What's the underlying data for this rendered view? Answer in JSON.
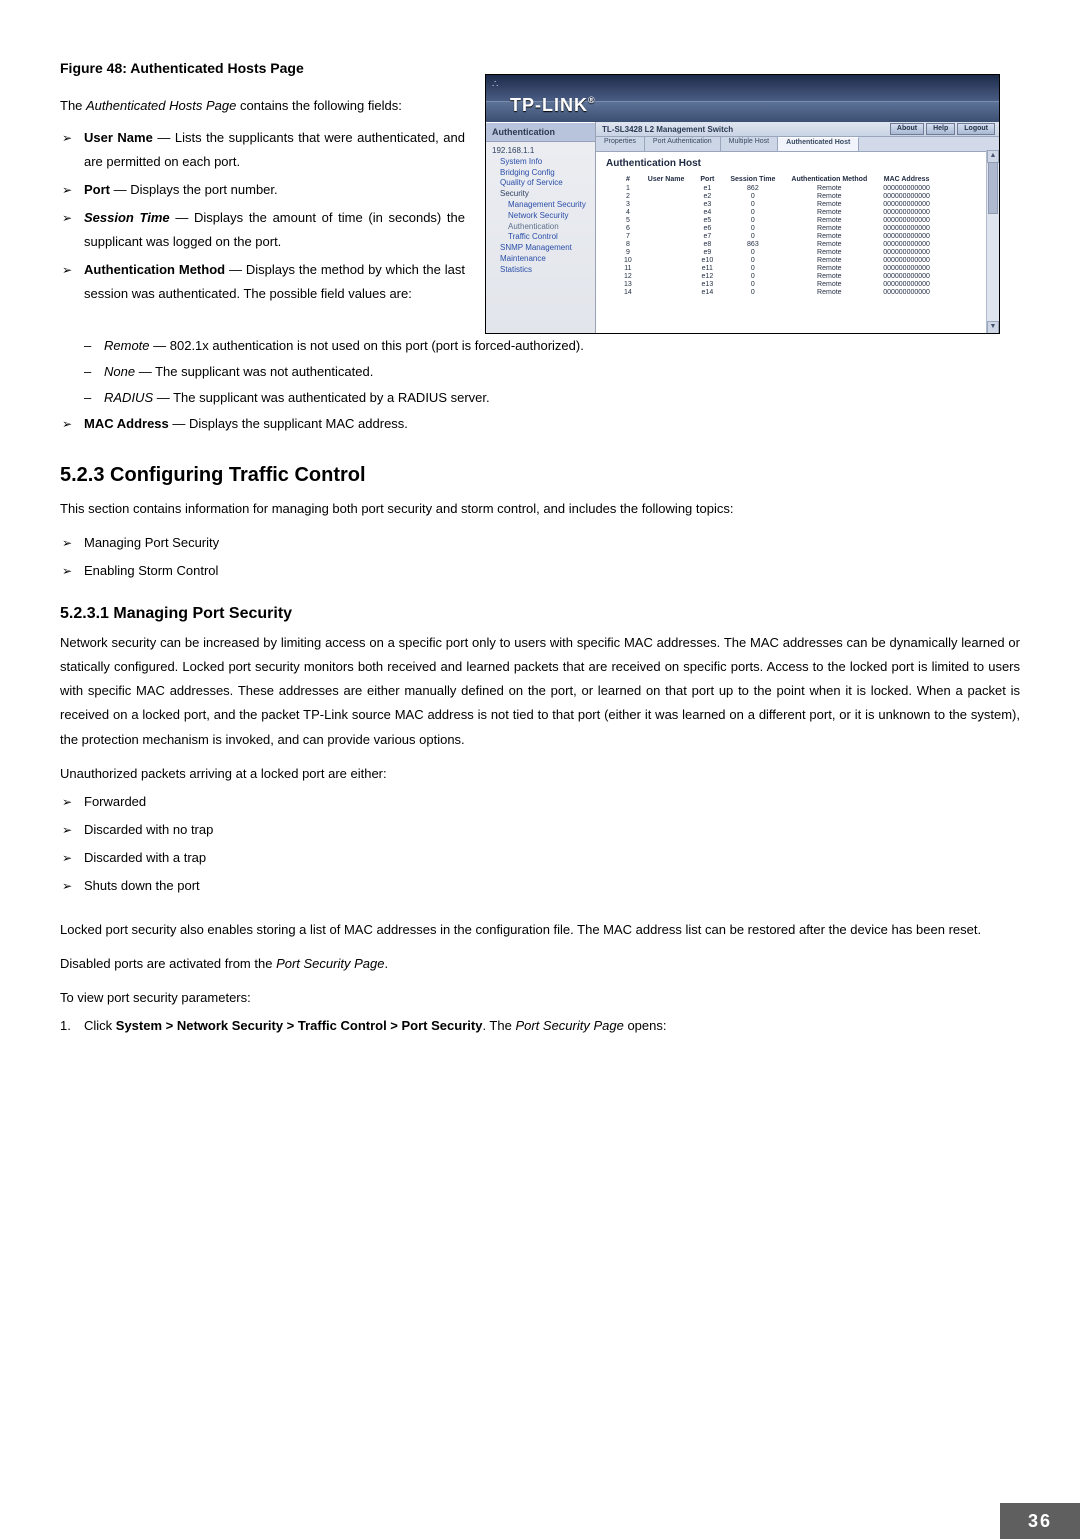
{
  "figure_caption": "Figure 48: Authenticated Hosts Page",
  "intro_pre": "The ",
  "intro_em": "Authenticated Hosts Page",
  "intro_post": " contains the following fields:",
  "bullets": [
    {
      "label": "User Name",
      "label_bold": true,
      "sep": " — ",
      "rest": "Lists the supplicants that were authenticated, and are permitted on each port."
    },
    {
      "label": "Port",
      "label_bold": true,
      "sep": " — ",
      "rest": "Displays the port number."
    },
    {
      "label": "Session Time",
      "label_bold": true,
      "label_italic": true,
      "sep": " — ",
      "rest": "Displays the amount of time (in seconds) the supplicant was logged on the port."
    },
    {
      "label": "Authentication Method",
      "label_bold": true,
      "sep": " — ",
      "rest": "Displays the method by which the last session was authenticated. The possible field values are:"
    }
  ],
  "sub_bullets": [
    {
      "em": "Remote",
      "rest": " — 802.1x authentication is not used on this port (port is forced-authorized)."
    },
    {
      "em": "None",
      "rest": " — The supplicant was not authenticated."
    },
    {
      "em": "RADIUS",
      "rest": " — The supplicant was authenticated by a RADIUS server."
    }
  ],
  "mac_bullet": {
    "label": "MAC Address",
    "sep": " — ",
    "rest": "Displays the supplicant MAC address."
  },
  "section_523": "5.2.3   Configuring Traffic Control",
  "section_523_intro": "This section contains information for managing both port security and storm control, and includes the following topics:",
  "section_523_items": [
    "Managing Port Security",
    "Enabling Storm Control"
  ],
  "section_5231": "5.2.3.1   Managing Port Security",
  "para1": "Network security can be increased by limiting access on a specific port only to users with specific MAC addresses. The MAC addresses can be dynamically learned or statically configured. Locked port security monitors both received and learned packets that are received on specific ports. Access to the locked port is limited to users with specific MAC addresses. These addresses are either manually defined on the port, or learned on that port up to the point when it is locked. When a packet is received on a locked port, and the packet TP-Link source MAC address is not tied to that port (either it was learned on a different port, or it is unknown to the system), the protection mechanism is invoked, and can provide various options.",
  "unauth_line": "Unauthorized packets arriving at a locked port are either:",
  "unauth_items": [
    "Forwarded",
    "Discarded with no trap",
    "Discarded with a trap",
    "Shuts down the port"
  ],
  "para2": "Locked port security also enables storing a list of MAC addresses in the configuration file. The MAC address list can be restored after the device has been reset.",
  "disabled_pre": "Disabled ports are activated from the ",
  "disabled_em": "Port Security Page",
  "disabled_post": ".",
  "toview": "To view port security parameters:",
  "step1_pre": "Click ",
  "step1_bold": "System > Network Security > Traffic Control > Port Security",
  "step1_mid": ". The ",
  "step1_em": "Port Security Page",
  "step1_post": " opens:",
  "page_number": "36",
  "shot": {
    "brand": "TP-LINK",
    "brand_reg": "®",
    "auth_label": "Authentication",
    "title_bar": "TL-SL3428 L2 Management Switch",
    "btn_about": "About",
    "btn_help": "Help",
    "btn_logout": "Logout",
    "tabs": [
      "Properties",
      "Port Authentication",
      "Multiple Host",
      "Authenticated Host"
    ],
    "active_tab_index": 3,
    "panel_title": "Authentication Host",
    "tree": [
      {
        "txt": "192.168.1.1",
        "cls": "row",
        "indent": 0
      },
      {
        "txt": "System Info",
        "cls": "row link i1",
        "indent": 1
      },
      {
        "txt": "Bridging Config",
        "cls": "row link i1",
        "indent": 1
      },
      {
        "txt": "Quality of Service",
        "cls": "row link i1",
        "indent": 1
      },
      {
        "txt": "Security",
        "cls": "row i1",
        "indent": 1
      },
      {
        "txt": "Management Security",
        "cls": "row link i2",
        "indent": 2
      },
      {
        "txt": "Network Security",
        "cls": "row link i2",
        "indent": 2
      },
      {
        "txt": "Authentication",
        "cls": "row sel i2",
        "indent": 2
      },
      {
        "txt": "Traffic Control",
        "cls": "row link i2",
        "indent": 2
      },
      {
        "txt": "SNMP Management",
        "cls": "row link i1",
        "indent": 1
      },
      {
        "txt": "Maintenance",
        "cls": "row link i1",
        "indent": 1
      },
      {
        "txt": "Statistics",
        "cls": "row link i1",
        "indent": 1
      }
    ],
    "columns": [
      "#",
      "User Name",
      "Port",
      "Session Time",
      "Authentication Method",
      "MAC Address"
    ],
    "rows": [
      [
        "1",
        "",
        "e1",
        "862",
        "Remote",
        "000000000000"
      ],
      [
        "2",
        "",
        "e2",
        "0",
        "Remote",
        "000000000000"
      ],
      [
        "3",
        "",
        "e3",
        "0",
        "Remote",
        "000000000000"
      ],
      [
        "4",
        "",
        "e4",
        "0",
        "Remote",
        "000000000000"
      ],
      [
        "5",
        "",
        "e5",
        "0",
        "Remote",
        "000000000000"
      ],
      [
        "6",
        "",
        "e6",
        "0",
        "Remote",
        "000000000000"
      ],
      [
        "7",
        "",
        "e7",
        "0",
        "Remote",
        "000000000000"
      ],
      [
        "8",
        "",
        "e8",
        "863",
        "Remote",
        "000000000000"
      ],
      [
        "9",
        "",
        "e9",
        "0",
        "Remote",
        "000000000000"
      ],
      [
        "10",
        "",
        "e10",
        "0",
        "Remote",
        "000000000000"
      ],
      [
        "11",
        "",
        "e11",
        "0",
        "Remote",
        "000000000000"
      ],
      [
        "12",
        "",
        "e12",
        "0",
        "Remote",
        "000000000000"
      ],
      [
        "13",
        "",
        "e13",
        "0",
        "Remote",
        "000000000000"
      ],
      [
        "14",
        "",
        "e14",
        "0",
        "Remote",
        "000000000000"
      ]
    ]
  }
}
